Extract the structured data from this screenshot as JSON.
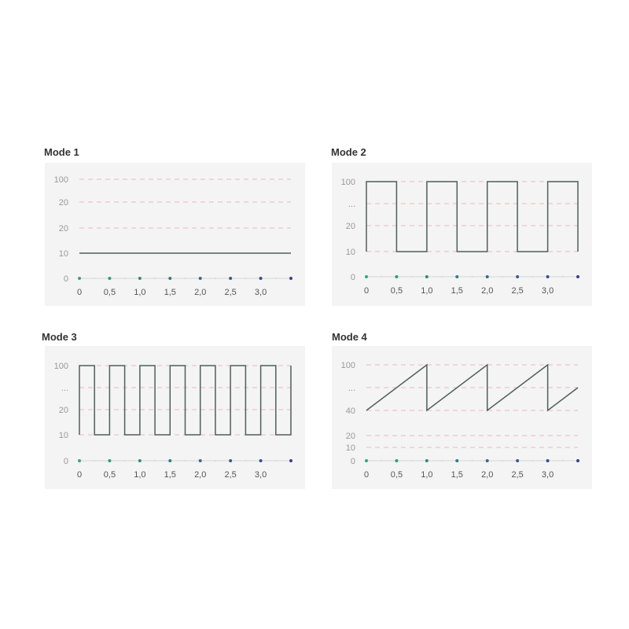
{
  "colors": {
    "panel_bg": "#f4f4f4",
    "line": "#4f5f5a",
    "grid": "#e6a5ad",
    "dot_start": "#3aa37c",
    "dot_end": "#3a3f8f",
    "axis": "#cccccc"
  },
  "chart_data": [
    {
      "type": "line",
      "title": "Mode 1",
      "x_ticks": [
        "0",
        "0,5",
        "1,0",
        "1,5",
        "2,0",
        "2,5",
        "3,0"
      ],
      "xlim": [
        0,
        3.5
      ],
      "y_ticks": [
        "100",
        "20",
        "20",
        "10",
        "0"
      ],
      "points": [
        [
          0,
          "10"
        ],
        [
          3.5,
          "10"
        ]
      ]
    },
    {
      "type": "line",
      "title": "Mode 2",
      "x_ticks": [
        "0",
        "0,5",
        "1,0",
        "1,5",
        "2,0",
        "2,5",
        "3,0"
      ],
      "xlim": [
        0,
        3.5
      ],
      "y_ticks": [
        "100",
        "...",
        "20",
        "10",
        "0"
      ],
      "points": [
        [
          0,
          "10"
        ],
        [
          0,
          "100"
        ],
        [
          0.5,
          "100"
        ],
        [
          0.5,
          "10"
        ],
        [
          1,
          "10"
        ],
        [
          1,
          "100"
        ],
        [
          1.5,
          "100"
        ],
        [
          1.5,
          "10"
        ],
        [
          2,
          "10"
        ],
        [
          2,
          "100"
        ],
        [
          2.5,
          "100"
        ],
        [
          2.5,
          "10"
        ],
        [
          3,
          "10"
        ],
        [
          3,
          "100"
        ],
        [
          3.5,
          "100"
        ],
        [
          3.5,
          "10"
        ]
      ]
    },
    {
      "type": "line",
      "title": "Mode 3",
      "x_ticks": [
        "0",
        "0,5",
        "1,0",
        "1,5",
        "2,0",
        "2,5",
        "3,0"
      ],
      "xlim": [
        0,
        3.5
      ],
      "y_ticks": [
        "100",
        "...",
        "20",
        "10",
        "0"
      ],
      "points": [
        [
          0,
          "10"
        ],
        [
          0,
          "100"
        ],
        [
          0.25,
          "100"
        ],
        [
          0.25,
          "10"
        ],
        [
          0.5,
          "10"
        ],
        [
          0.5,
          "100"
        ],
        [
          0.75,
          "100"
        ],
        [
          0.75,
          "10"
        ],
        [
          1,
          "10"
        ],
        [
          1,
          "100"
        ],
        [
          1.25,
          "100"
        ],
        [
          1.25,
          "10"
        ],
        [
          1.5,
          "10"
        ],
        [
          1.5,
          "100"
        ],
        [
          1.75,
          "100"
        ],
        [
          1.75,
          "10"
        ],
        [
          2,
          "10"
        ],
        [
          2,
          "100"
        ],
        [
          2.25,
          "100"
        ],
        [
          2.25,
          "10"
        ],
        [
          2.5,
          "10"
        ],
        [
          2.5,
          "100"
        ],
        [
          2.75,
          "100"
        ],
        [
          2.75,
          "10"
        ],
        [
          3,
          "10"
        ],
        [
          3,
          "100"
        ],
        [
          3.25,
          "100"
        ],
        [
          3.25,
          "10"
        ],
        [
          3.5,
          "10"
        ],
        [
          3.5,
          "100"
        ]
      ]
    },
    {
      "type": "line",
      "title": "Mode 4",
      "x_ticks": [
        "0",
        "0,5",
        "1,0",
        "1,5",
        "2,0",
        "2,5",
        "3,0"
      ],
      "xlim": [
        0,
        3.5
      ],
      "y_ticks": [
        "100",
        "...",
        "40",
        "20",
        "10",
        "0"
      ],
      "points": [
        [
          0,
          "40"
        ],
        [
          1,
          "100"
        ],
        [
          1,
          "40"
        ],
        [
          2,
          "100"
        ],
        [
          2,
          "40"
        ],
        [
          3,
          "100"
        ],
        [
          3,
          "40"
        ],
        [
          3.5,
          "..."
        ]
      ]
    }
  ]
}
